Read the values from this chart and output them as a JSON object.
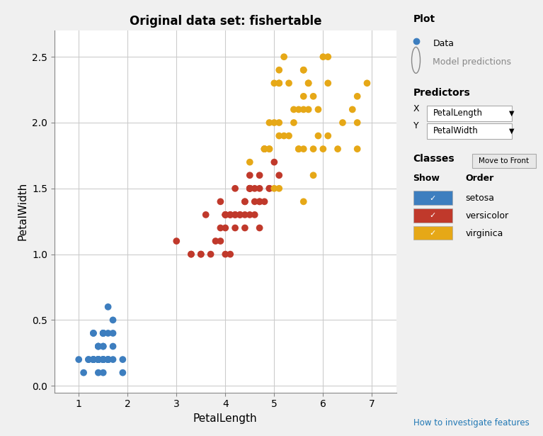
{
  "title": "Original data set: fishertable",
  "xlabel": "PetalLength",
  "ylabel": "PetalWidth",
  "xlim": [
    0.5,
    7.5
  ],
  "ylim": [
    -0.05,
    2.7
  ],
  "xticks": [
    1,
    2,
    3,
    4,
    5,
    6,
    7
  ],
  "yticks": [
    0,
    0.5,
    1.0,
    1.5,
    2.0,
    2.5
  ],
  "grid": true,
  "bg_color": "#f0f0f0",
  "plot_bg_color": "#ffffff",
  "setosa_color": "#3d7ebf",
  "versicolor_color": "#c0392b",
  "virginica_color": "#e6a817",
  "marker_size": 7,
  "setosa": {
    "PetalLength": [
      1.4,
      1.4,
      1.3,
      1.5,
      1.4,
      1.7,
      1.4,
      1.5,
      1.4,
      1.5,
      1.5,
      1.6,
      1.4,
      1.1,
      1.2,
      1.5,
      1.3,
      1.4,
      1.7,
      1.5,
      1.7,
      1.5,
      1.0,
      1.7,
      1.9,
      1.6,
      1.6,
      1.5,
      1.4,
      1.6,
      1.6,
      1.5,
      1.5,
      1.4,
      1.5,
      1.2,
      1.3,
      1.4,
      1.3,
      1.5,
      1.3,
      1.3,
      1.3,
      1.6,
      1.9,
      1.4,
      1.6,
      1.4,
      1.5,
      1.4
    ],
    "PetalWidth": [
      0.2,
      0.2,
      0.2,
      0.2,
      0.2,
      0.4,
      0.3,
      0.2,
      0.2,
      0.1,
      0.2,
      0.2,
      0.1,
      0.1,
      0.2,
      0.4,
      0.4,
      0.3,
      0.3,
      0.3,
      0.2,
      0.4,
      0.2,
      0.5,
      0.2,
      0.2,
      0.4,
      0.2,
      0.2,
      0.2,
      0.6,
      0.4,
      0.4,
      0.2,
      0.2,
      0.2,
      0.2,
      0.3,
      0.4,
      0.3,
      0.2,
      0.2,
      0.2,
      0.2,
      0.1,
      0.2,
      0.2,
      0.2,
      0.2,
      0.2
    ]
  },
  "versicolor": {
    "PetalLength": [
      4.7,
      4.5,
      4.9,
      4.0,
      4.6,
      4.5,
      4.7,
      3.3,
      4.6,
      3.9,
      3.5,
      4.2,
      4.0,
      4.7,
      3.6,
      4.4,
      4.5,
      4.1,
      4.5,
      3.9,
      4.8,
      4.0,
      4.9,
      4.7,
      4.3,
      4.4,
      4.8,
      5.0,
      4.5,
      3.5,
      3.8,
      3.7,
      3.9,
      5.1,
      4.5,
      4.5,
      4.7,
      4.4,
      4.1,
      4.0,
      4.4,
      4.6,
      4.0,
      3.3,
      4.2,
      4.2,
      4.2,
      4.3,
      3.0,
      4.1
    ],
    "PetalWidth": [
      1.4,
      1.5,
      1.5,
      1.3,
      1.5,
      1.3,
      1.6,
      1.0,
      1.3,
      1.4,
      1.0,
      1.5,
      1.0,
      1.4,
      1.3,
      1.4,
      1.5,
      1.0,
      1.5,
      1.1,
      1.8,
      1.3,
      1.5,
      1.2,
      1.3,
      1.4,
      1.4,
      1.7,
      1.5,
      1.0,
      1.1,
      1.0,
      1.2,
      1.6,
      1.5,
      1.6,
      1.5,
      1.3,
      1.3,
      1.3,
      1.2,
      1.4,
      1.2,
      1.0,
      1.3,
      1.2,
      1.3,
      1.3,
      1.1,
      1.3
    ]
  },
  "virginica": {
    "PetalLength": [
      6.0,
      5.1,
      5.9,
      5.6,
      5.8,
      6.6,
      4.5,
      6.3,
      5.8,
      6.1,
      5.1,
      5.3,
      5.5,
      5.0,
      5.1,
      5.3,
      5.5,
      6.7,
      6.9,
      5.0,
      5.7,
      4.9,
      6.7,
      4.9,
      5.7,
      6.0,
      4.8,
      4.9,
      5.6,
      5.8,
      6.1,
      6.4,
      5.6,
      5.1,
      5.6,
      6.1,
      5.6,
      5.5,
      4.8,
      5.4,
      5.6,
      5.1,
      5.9,
      5.7,
      5.2,
      5.0,
      5.2,
      5.4,
      5.1,
      6.7
    ],
    "PetalWidth": [
      2.5,
      1.9,
      2.1,
      1.8,
      2.2,
      2.1,
      1.7,
      1.8,
      1.8,
      2.5,
      2.0,
      1.9,
      2.1,
      2.0,
      2.4,
      2.3,
      1.8,
      2.2,
      2.3,
      1.5,
      2.3,
      2.0,
      2.0,
      1.8,
      2.1,
      1.8,
      1.8,
      1.8,
      2.1,
      1.6,
      1.9,
      2.0,
      2.2,
      1.5,
      1.4,
      2.3,
      2.4,
      1.8,
      1.8,
      2.1,
      2.4,
      2.3,
      1.9,
      2.3,
      2.5,
      2.3,
      1.9,
      2.0,
      2.3,
      1.8
    ]
  }
}
